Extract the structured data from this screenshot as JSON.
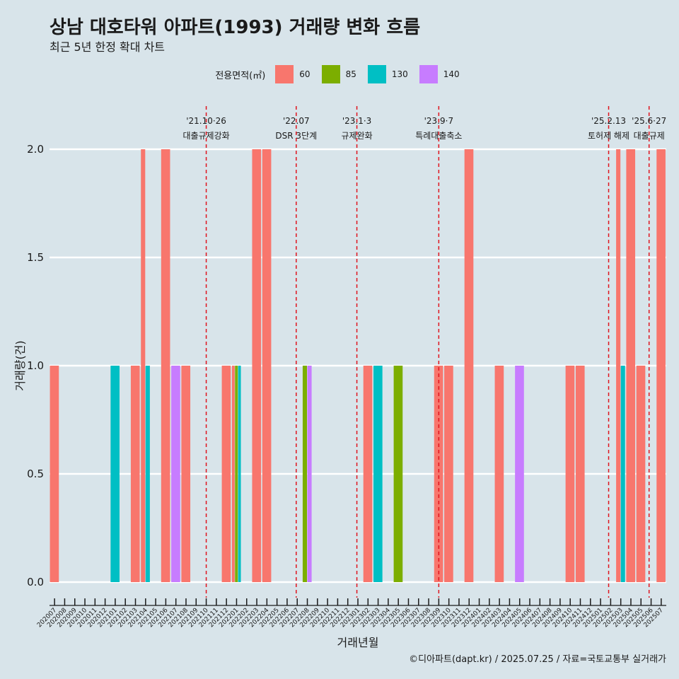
{
  "title": "상남 대호타워 아파트(1993) 거래량 변화 흐름",
  "subtitle": "최근 5년 한정 확대 차트",
  "legend": {
    "title": "전용면적(㎡)"
  },
  "caption": "©디아파트(dapt.kr) / 2025.07.25 / 자료=국토교통부 실거래가",
  "colors": {
    "60": "#f8766d",
    "85": "#7cae00",
    "130": "#00bfc4",
    "140": "#c77cff",
    "vline": "#e0141e"
  },
  "chart_data": {
    "type": "bar",
    "xlabel": "거래년월",
    "ylabel": "거래량(건)",
    "ylim": [
      0,
      2
    ],
    "yticks": [
      0.0,
      0.5,
      1.0,
      1.5,
      2.0
    ],
    "ytick_labels": [
      "0.0",
      "0.5",
      "1.0",
      "1.5",
      "2.0"
    ],
    "grid": true,
    "legend_position": "top",
    "categories": [
      "202007",
      "202008",
      "202009",
      "202010",
      "202011",
      "202012",
      "202101",
      "202102",
      "202103",
      "202104",
      "202105",
      "202106",
      "202107",
      "202108",
      "202109",
      "202110",
      "202111",
      "202112",
      "202201",
      "202202",
      "202203",
      "202204",
      "202205",
      "202206",
      "202207",
      "202208",
      "202209",
      "202210",
      "202211",
      "202212",
      "202301",
      "202302",
      "202303",
      "202304",
      "202305",
      "202306",
      "202307",
      "202308",
      "202309",
      "202310",
      "202311",
      "202312",
      "202401",
      "202402",
      "202403",
      "202404",
      "202405",
      "202406",
      "202407",
      "202408",
      "202409",
      "202410",
      "202411",
      "202412",
      "202501",
      "202502",
      "202503",
      "202504",
      "202505",
      "202506",
      "202507"
    ],
    "series": [
      {
        "name": "60",
        "values": [
          1,
          0,
          0,
          0,
          0,
          0,
          0,
          0,
          1,
          2,
          0,
          2,
          0,
          1,
          0,
          0,
          0,
          1,
          1,
          0,
          2,
          2,
          0,
          0,
          0,
          0,
          0,
          0,
          0,
          0,
          0,
          1,
          0,
          0,
          0,
          0,
          0,
          0,
          1,
          1,
          0,
          2,
          0,
          0,
          1,
          0,
          0,
          0,
          0,
          0,
          0,
          1,
          1,
          0,
          0,
          0,
          2,
          2,
          1,
          0,
          2
        ]
      },
      {
        "name": "85",
        "values": [
          0,
          0,
          0,
          0,
          0,
          0,
          0,
          0,
          0,
          0,
          0,
          0,
          0,
          0,
          0,
          0,
          0,
          0,
          1,
          0,
          0,
          0,
          0,
          0,
          0,
          1,
          0,
          0,
          0,
          0,
          0,
          0,
          0,
          0,
          1,
          0,
          0,
          0,
          0,
          0,
          0,
          0,
          0,
          0,
          0,
          0,
          0,
          0,
          0,
          0,
          0,
          0,
          0,
          0,
          0,
          0,
          0,
          0,
          0,
          0,
          0
        ]
      },
      {
        "name": "130",
        "values": [
          0,
          0,
          0,
          0,
          0,
          0,
          1,
          0,
          0,
          1,
          0,
          0,
          0,
          0,
          0,
          0,
          0,
          0,
          1,
          0,
          0,
          0,
          0,
          0,
          0,
          0,
          0,
          0,
          0,
          0,
          0,
          0,
          1,
          0,
          0,
          0,
          0,
          0,
          0,
          0,
          0,
          0,
          0,
          0,
          0,
          0,
          0,
          0,
          0,
          0,
          0,
          0,
          0,
          0,
          0,
          0,
          1,
          0,
          0,
          0,
          0
        ]
      },
      {
        "name": "140",
        "values": [
          0,
          0,
          0,
          0,
          0,
          0,
          0,
          0,
          0,
          0,
          0,
          0,
          1,
          0,
          0,
          0,
          0,
          0,
          0,
          0,
          0,
          0,
          0,
          0,
          0,
          1,
          0,
          0,
          0,
          0,
          0,
          0,
          0,
          0,
          0,
          0,
          0,
          0,
          0,
          0,
          0,
          0,
          0,
          0,
          0,
          0,
          1,
          0,
          0,
          0,
          0,
          0,
          0,
          0,
          0,
          0,
          0,
          0,
          0,
          0,
          0
        ]
      }
    ],
    "annotations": [
      {
        "x": 15.5,
        "date": "'21.10·26",
        "label": "대출규제강화"
      },
      {
        "x": 24.4,
        "date": "'22.07",
        "label": "DSR 3단계"
      },
      {
        "x": 30.4,
        "date": "'23.1·3",
        "label": "규제완화"
      },
      {
        "x": 38.5,
        "date": "'23.9·7",
        "label": "특례대출축소"
      },
      {
        "x": 55.3,
        "date": "'25.2.13",
        "label": "토허제 해제"
      },
      {
        "x": 59.3,
        "date": "'25.6·27",
        "label": "대출규제"
      }
    ]
  }
}
